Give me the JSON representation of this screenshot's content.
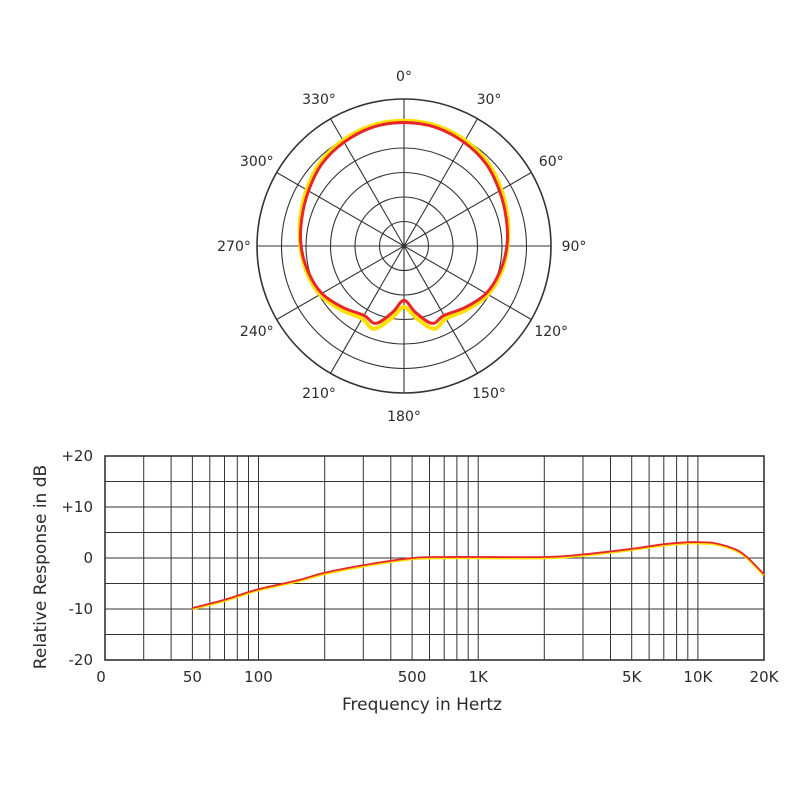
{
  "chart_data": [
    {
      "type": "polar",
      "title": "",
      "angle_labels": [
        "0°",
        "30°",
        "60°",
        "90°",
        "120°",
        "150°",
        "180°",
        "210°",
        "240°",
        "270°",
        "300°",
        "330°"
      ],
      "grid_rings": 6,
      "series": [
        {
          "color": "#ffe000",
          "angle_deg": [
            0,
            15,
            30,
            45,
            60,
            75,
            90,
            105,
            120,
            135,
            150,
            160,
            170,
            180,
            190,
            200,
            210,
            225,
            240,
            255,
            270,
            285,
            300,
            315,
            330,
            345
          ],
          "relative_radius": [
            0.852,
            0.848,
            0.83,
            0.805,
            0.765,
            0.73,
            0.705,
            0.685,
            0.66,
            0.61,
            0.57,
            0.6,
            0.5,
            0.415,
            0.5,
            0.6,
            0.57,
            0.61,
            0.66,
            0.685,
            0.705,
            0.73,
            0.765,
            0.805,
            0.83,
            0.848
          ]
        },
        {
          "color": "#e8262a",
          "angle_deg": [
            0,
            15,
            30,
            45,
            60,
            75,
            90,
            105,
            120,
            135,
            150,
            160,
            170,
            180,
            190,
            200,
            210,
            225,
            240,
            255,
            270,
            285,
            300,
            315,
            330,
            345
          ],
          "relative_radius": [
            0.84,
            0.835,
            0.815,
            0.79,
            0.75,
            0.72,
            0.7,
            0.675,
            0.645,
            0.59,
            0.545,
            0.56,
            0.46,
            0.37,
            0.46,
            0.56,
            0.545,
            0.59,
            0.645,
            0.675,
            0.7,
            0.72,
            0.75,
            0.79,
            0.815,
            0.835
          ]
        }
      ]
    },
    {
      "type": "line",
      "title": "",
      "xlabel": "Frequency in Hertz",
      "ylabel": "Relative Response in dB",
      "xscale": "log",
      "xlim": [
        20,
        20000
      ],
      "ylim": [
        -20,
        20
      ],
      "x_tick_labels": [
        "0",
        "50",
        "100",
        "500",
        "1K",
        "5K",
        "10K",
        "20K"
      ],
      "y_tick_labels": [
        "+20",
        "+10",
        "0",
        "-10",
        "-20"
      ],
      "grid": true,
      "series": [
        {
          "color": "#ffe000",
          "x": [
            50,
            70,
            100,
            150,
            200,
            300,
            500,
            700,
            1000,
            2000,
            3000,
            5000,
            7000,
            9000,
            10000,
            12000,
            15000,
            17000,
            20000
          ],
          "y": [
            -10,
            -8.4,
            -6.3,
            -4.6,
            -3.1,
            -1.6,
            -0.2,
            0,
            0,
            0,
            0.5,
            1.6,
            2.5,
            2.9,
            2.9,
            2.7,
            1.4,
            -0.3,
            -3.4
          ]
        },
        {
          "color": "#e8262a",
          "x": [
            50,
            70,
            100,
            150,
            200,
            300,
            500,
            700,
            1000,
            2000,
            3000,
            5000,
            7000,
            9000,
            10000,
            12000,
            15000,
            17000,
            20000
          ],
          "y": [
            -9.8,
            -8.2,
            -6.1,
            -4.4,
            -2.9,
            -1.4,
            0,
            0.2,
            0.2,
            0.2,
            0.7,
            1.8,
            2.7,
            3.1,
            3.1,
            2.9,
            1.6,
            -0.1,
            -3.2
          ]
        }
      ]
    }
  ]
}
